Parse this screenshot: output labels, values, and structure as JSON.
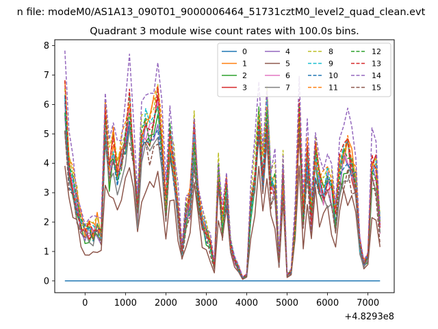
{
  "suptitle": "n file: modeM0/AS1A13_090T01_9000006464_51731cztM0_level2_quad_clean.evt",
  "chart_data": {
    "type": "line",
    "title": "Quadrant 3 module wise count rates with 100.0s bins.",
    "xlabel": "",
    "ylabel": "",
    "x_offset_label": "+4.8293e8",
    "xlim": [
      -750,
      7650
    ],
    "ylim": [
      -0.4,
      8.2
    ],
    "xticks": [
      0,
      1000,
      2000,
      3000,
      4000,
      5000,
      6000,
      7000
    ],
    "yticks": [
      0,
      1,
      2,
      3,
      4,
      5,
      6,
      7,
      8
    ],
    "x": [
      -500,
      -400,
      -300,
      -200,
      -100,
      0,
      100,
      200,
      300,
      400,
      500,
      600,
      700,
      800,
      900,
      1000,
      1100,
      1200,
      1300,
      1400,
      1500,
      1600,
      1700,
      1800,
      1900,
      2000,
      2100,
      2200,
      2300,
      2400,
      2500,
      2600,
      2700,
      2800,
      2900,
      3000,
      3100,
      3200,
      3300,
      3400,
      3500,
      3600,
      3700,
      3800,
      3900,
      4000,
      4100,
      4200,
      4300,
      4400,
      4500,
      4600,
      4700,
      4800,
      4900,
      5000,
      5100,
      5200,
      5300,
      5400,
      5500,
      5600,
      5700,
      5800,
      5900,
      6000,
      6100,
      6200,
      6300,
      6400,
      6500,
      6600,
      6700,
      6800,
      6900,
      7000,
      7100,
      7200,
      7300
    ],
    "base_profile": [
      6.0,
      3.8,
      3.2,
      2.6,
      2.0,
      1.6,
      1.7,
      1.6,
      1.9,
      1.5,
      5.3,
      3.6,
      4.6,
      3.7,
      4.2,
      4.9,
      5.8,
      4.0,
      2.4,
      4.7,
      5.3,
      5.0,
      5.5,
      5.8,
      4.6,
      2.5,
      4.8,
      3.8,
      2.4,
      1.0,
      2.3,
      2.6,
      4.8,
      2.8,
      2.0,
      1.6,
      1.2,
      0.5,
      3.5,
      1.9,
      3.0,
      1.2,
      0.7,
      0.4,
      0.1,
      0.2,
      2.5,
      3.5,
      5.4,
      3.5,
      5.5,
      3.2,
      3.3,
      0.7,
      3.5,
      0.2,
      0.3,
      2.0,
      5.4,
      2.2,
      4.4,
      2.1,
      4.1,
      3.4,
      3.0,
      3.3,
      3.0,
      2.2,
      3.6,
      4.1,
      4.3,
      3.8,
      3.4,
      1.2,
      0.6,
      0.8,
      3.8,
      3.8,
      1.8
    ],
    "series": [
      {
        "name": "0",
        "color": "#1f77b4",
        "dash": false,
        "scale": 0.0,
        "flat": 0.0
      },
      {
        "name": "1",
        "color": "#ff7f0e",
        "dash": false,
        "scale": 1.06
      },
      {
        "name": "2",
        "color": "#2ca02c",
        "dash": false,
        "scale": 0.93
      },
      {
        "name": "3",
        "color": "#d62728",
        "dash": false,
        "scale": 1.0
      },
      {
        "name": "4",
        "color": "#9467bd",
        "dash": false,
        "scale": 0.96
      },
      {
        "name": "5",
        "color": "#8c564b",
        "dash": false,
        "scale": 0.66
      },
      {
        "name": "6",
        "color": "#e377c2",
        "dash": false,
        "scale": 0.98
      },
      {
        "name": "7",
        "color": "#7f7f7f",
        "dash": false,
        "scale": 0.9
      },
      {
        "name": "8",
        "color": "#bcbd22",
        "dash": true,
        "scale": 1.12
      },
      {
        "name": "9",
        "color": "#17becf",
        "dash": true,
        "scale": 1.03
      },
      {
        "name": "10",
        "color": "#1f77b4",
        "dash": true,
        "scale": 0.97
      },
      {
        "name": "11",
        "color": "#ff7f0e",
        "dash": true,
        "scale": 1.08
      },
      {
        "name": "12",
        "color": "#2ca02c",
        "dash": true,
        "scale": 1.01
      },
      {
        "name": "13",
        "color": "#d62728",
        "dash": true,
        "scale": 1.05
      },
      {
        "name": "14",
        "color": "#9467bd",
        "dash": true,
        "scale": 1.25
      },
      {
        "name": "15",
        "color": "#8c564b",
        "dash": true,
        "scale": 0.86
      }
    ],
    "legend_position": "top-right",
    "legend_columns": 4,
    "grid": false
  }
}
